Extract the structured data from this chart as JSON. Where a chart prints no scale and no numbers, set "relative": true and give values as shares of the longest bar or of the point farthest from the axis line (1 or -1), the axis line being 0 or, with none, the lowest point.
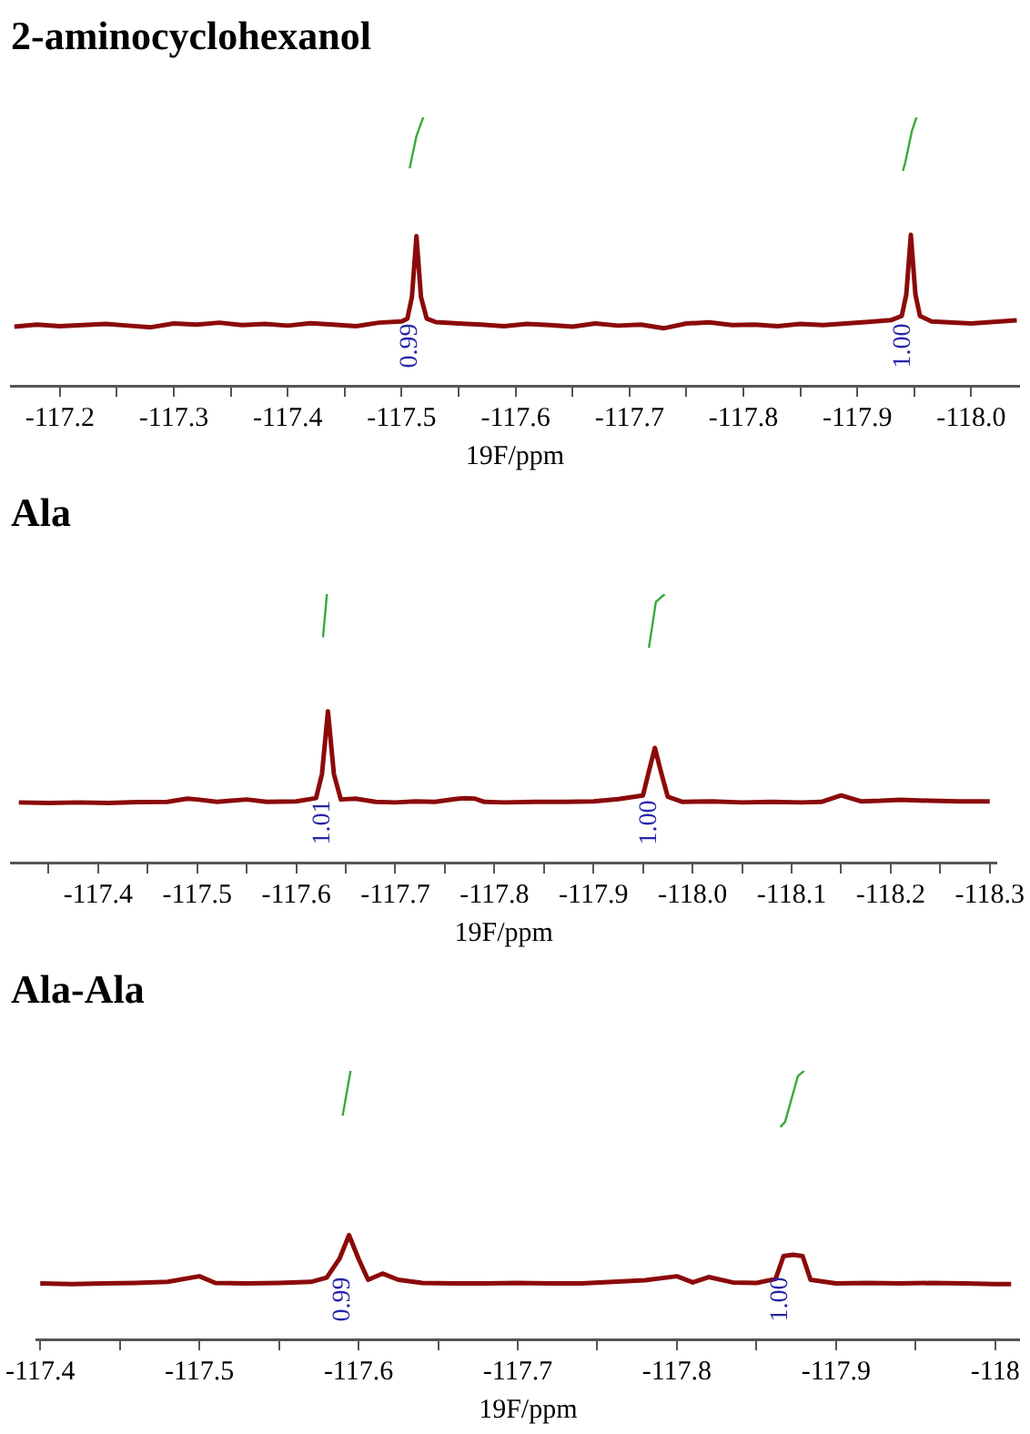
{
  "chart_data": [
    {
      "type": "line",
      "title": "2-aminocyclohexanol",
      "xlabel": "19F/ppm",
      "relative": true,
      "marker": "none",
      "grid": false,
      "legend": false,
      "xlim": [
        -117.157,
        -118.042
      ],
      "xticks": [
        -117.2,
        {
          "value": -117.25,
          "label": null
        },
        -117.3,
        {
          "value": -117.35,
          "label": null
        },
        -117.4,
        {
          "value": -117.45,
          "label": null
        },
        -117.5,
        {
          "value": -117.55,
          "label": null
        },
        -117.6,
        {
          "value": -117.65,
          "label": null
        },
        -117.7,
        {
          "value": -117.75,
          "label": null
        },
        -117.8,
        {
          "value": -117.85,
          "label": null
        },
        -117.9,
        {
          "value": -117.95,
          "label": null
        },
        {
          "value": -118.0,
          "label": "-118.0"
        }
      ],
      "series": [
        {
          "color": "#8b0a0a",
          "x": [
            -117.16,
            -117.18,
            -117.2,
            -117.22,
            -117.24,
            -117.26,
            -117.28,
            -117.3,
            -117.32,
            -117.34,
            -117.36,
            -117.38,
            -117.4,
            -117.42,
            -117.44,
            -117.46,
            -117.48,
            -117.5,
            -117.505,
            -117.509,
            -117.513,
            -117.517,
            -117.522,
            -117.53,
            -117.55,
            -117.57,
            -117.59,
            -117.61,
            -117.63,
            -117.65,
            -117.67,
            -117.69,
            -117.71,
            -117.73,
            -117.75,
            -117.77,
            -117.79,
            -117.81,
            -117.83,
            -117.85,
            -117.87,
            -117.89,
            -117.91,
            -117.93,
            -117.939,
            -117.943,
            -117.947,
            -117.951,
            -117.955,
            -117.965,
            -117.98,
            -118.0,
            -118.02,
            -118.04
          ],
          "values": [
            0.22,
            0.228,
            0.222,
            0.226,
            0.23,
            0.224,
            0.218,
            0.232,
            0.228,
            0.235,
            0.226,
            0.23,
            0.224,
            0.233,
            0.228,
            0.222,
            0.235,
            0.24,
            0.25,
            0.33,
            0.557,
            0.33,
            0.25,
            0.237,
            0.232,
            0.228,
            0.222,
            0.23,
            0.226,
            0.22,
            0.232,
            0.224,
            0.228,
            0.214,
            0.232,
            0.236,
            0.226,
            0.228,
            0.222,
            0.23,
            0.226,
            0.232,
            0.238,
            0.245,
            0.26,
            0.34,
            0.562,
            0.34,
            0.26,
            0.24,
            0.236,
            0.232,
            0.238,
            0.244
          ]
        },
        {
          "color": "#3aa83a",
          "x": [
            -117.507,
            -117.513,
            -117.519
          ],
          "values": [
            0.81,
            0.93,
            1.0
          ]
        },
        {
          "color": "#3aa83a",
          "x": [
            -117.94,
            -117.942,
            -117.948,
            -117.952
          ],
          "values": [
            0.8,
            0.83,
            0.95,
            1.0
          ]
        }
      ],
      "annotations": [
        "0.99",
        "1.00"
      ]
    },
    {
      "type": "line",
      "title": "Ala",
      "xlabel": "19F/ppm",
      "relative": true,
      "marker": "none",
      "grid": false,
      "legend": false,
      "xlim": [
        -117.312,
        -118.307
      ],
      "xticks": [
        {
          "value": -117.35,
          "label": null
        },
        -117.4,
        {
          "value": -117.45,
          "label": null
        },
        -117.5,
        {
          "value": -117.55,
          "label": null
        },
        -117.6,
        {
          "value": -117.65,
          "label": null
        },
        -117.7,
        {
          "value": -117.75,
          "label": null
        },
        -117.8,
        {
          "value": -117.85,
          "label": null
        },
        -117.9,
        {
          "value": -117.95,
          "label": null
        },
        {
          "value": -118.0,
          "label": "-118.0"
        },
        {
          "value": -118.05,
          "label": null
        },
        -118.1,
        {
          "value": -118.15,
          "label": null
        },
        -118.2,
        {
          "value": -118.25,
          "label": null
        },
        -118.3
      ],
      "series": [
        {
          "color": "#8b0a0a",
          "x": [
            -117.32,
            -117.35,
            -117.38,
            -117.41,
            -117.44,
            -117.47,
            -117.49,
            -117.5,
            -117.52,
            -117.55,
            -117.57,
            -117.6,
            -117.62,
            -117.626,
            -117.632,
            -117.638,
            -117.645,
            -117.66,
            -117.68,
            -117.7,
            -117.72,
            -117.74,
            -117.76,
            -117.77,
            -117.78,
            -117.79,
            -117.81,
            -117.84,
            -117.87,
            -117.9,
            -117.925,
            -117.95,
            -117.956,
            -117.962,
            -117.968,
            -117.975,
            -117.99,
            -118.02,
            -118.05,
            -118.08,
            -118.11,
            -118.13,
            -118.15,
            -118.17,
            -118.19,
            -118.21,
            -118.24,
            -118.27,
            -118.3
          ],
          "values": [
            0.224,
            0.222,
            0.224,
            0.222,
            0.225,
            0.226,
            0.238,
            0.235,
            0.226,
            0.235,
            0.226,
            0.228,
            0.24,
            0.33,
            0.563,
            0.33,
            0.235,
            0.238,
            0.226,
            0.224,
            0.228,
            0.226,
            0.236,
            0.24,
            0.238,
            0.226,
            0.224,
            0.226,
            0.226,
            0.228,
            0.236,
            0.25,
            0.34,
            0.427,
            0.34,
            0.245,
            0.226,
            0.228,
            0.224,
            0.226,
            0.224,
            0.226,
            0.25,
            0.228,
            0.23,
            0.234,
            0.23,
            0.228,
            0.228
          ]
        },
        {
          "color": "#3aa83a",
          "x": [
            -117.627,
            -117.631
          ],
          "values": [
            0.839,
            1.0
          ]
        },
        {
          "color": "#3aa83a",
          "x": [
            -117.956,
            -117.963,
            -117.972
          ],
          "values": [
            0.8,
            0.97,
            1.0
          ]
        }
      ],
      "annotations": [
        "1.01",
        "1.00"
      ]
    },
    {
      "type": "line",
      "title": "Ala-Ala",
      "xlabel": "19F/ppm",
      "relative": true,
      "marker": "none",
      "grid": false,
      "legend": false,
      "xlim": [
        -117.398,
        -118.015
      ],
      "xticks": [
        -117.4,
        {
          "value": -117.45,
          "label": null
        },
        -117.5,
        {
          "value": -117.55,
          "label": null
        },
        -117.6,
        {
          "value": -117.65,
          "label": null
        },
        -117.7,
        {
          "value": -117.75,
          "label": null
        },
        -117.8,
        {
          "value": -117.85,
          "label": null
        },
        -117.9,
        {
          "value": -117.95,
          "label": null
        },
        -118
      ],
      "series": [
        {
          "color": "#8b0a0a",
          "x": [
            -117.4,
            -117.42,
            -117.44,
            -117.46,
            -117.48,
            -117.5,
            -117.51,
            -117.53,
            -117.55,
            -117.57,
            -117.58,
            -117.588,
            -117.594,
            -117.6,
            -117.606,
            -117.615,
            -117.625,
            -117.64,
            -117.66,
            -117.68,
            -117.7,
            -117.72,
            -117.74,
            -117.76,
            -117.78,
            -117.8,
            -117.81,
            -117.82,
            -117.835,
            -117.85,
            -117.862,
            -117.867,
            -117.873,
            -117.879,
            -117.884,
            -117.9,
            -117.92,
            -117.94,
            -117.96,
            -117.98,
            -118.0,
            -118.01
          ],
          "values": [
            0.208,
            0.206,
            0.208,
            0.21,
            0.214,
            0.235,
            0.21,
            0.208,
            0.21,
            0.214,
            0.23,
            0.3,
            0.388,
            0.3,
            0.222,
            0.245,
            0.222,
            0.21,
            0.208,
            0.208,
            0.21,
            0.208,
            0.208,
            0.214,
            0.22,
            0.235,
            0.212,
            0.232,
            0.212,
            0.21,
            0.225,
            0.31,
            0.315,
            0.31,
            0.222,
            0.208,
            0.21,
            0.208,
            0.21,
            0.208,
            0.206,
            0.206
          ]
        },
        {
          "color": "#3aa83a",
          "x": [
            -117.59,
            -117.595
          ],
          "values": [
            0.833,
            1.0
          ]
        },
        {
          "color": "#3aa83a",
          "x": [
            -117.865,
            -117.868,
            -117.876,
            -117.88
          ],
          "values": [
            0.79,
            0.81,
            0.98,
            1.0
          ]
        }
      ],
      "annotations": [
        "0.99",
        "1.00"
      ]
    }
  ]
}
